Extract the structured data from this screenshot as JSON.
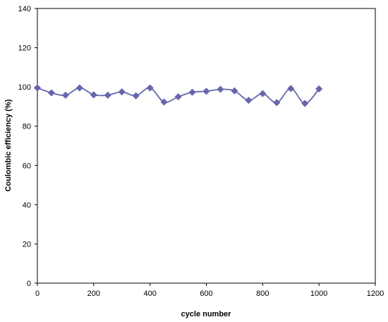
{
  "chart_data": {
    "type": "line",
    "title": "",
    "xlabel": "cycle number",
    "ylabel": "Coulombic efficiency (%)",
    "xlim": [
      0,
      1200
    ],
    "ylim": [
      0,
      140
    ],
    "x_ticks": [
      0,
      200,
      400,
      600,
      800,
      1000,
      1200
    ],
    "y_ticks": [
      0,
      20,
      40,
      60,
      80,
      100,
      120,
      140
    ],
    "grid": false,
    "legend": "none",
    "series": [
      {
        "color": "#6666aa",
        "marker": "diamond",
        "smooth": true,
        "x": [
          0,
          50,
          100,
          150,
          200,
          250,
          300,
          350,
          400,
          450,
          500,
          550,
          600,
          650,
          700,
          750,
          800,
          850,
          900,
          950,
          1000
        ],
        "y": [
          99.5,
          97,
          95.8,
          99.5,
          96,
          95.8,
          97.5,
          95.5,
          99.5,
          92.3,
          95,
          97.3,
          97.8,
          98.8,
          98,
          93.2,
          96.6,
          92,
          99.2,
          91.6,
          99
        ]
      }
    ]
  }
}
